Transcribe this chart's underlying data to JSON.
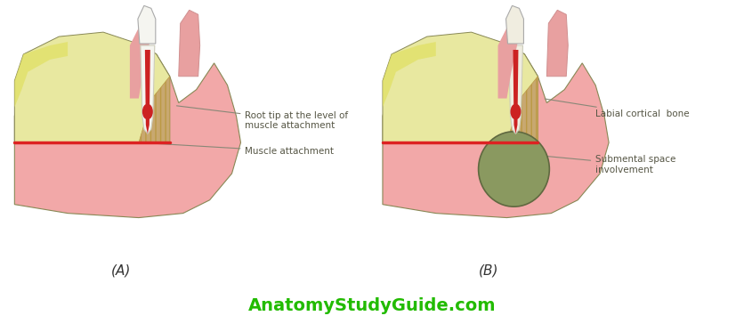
{
  "bg_color": "#ffffff",
  "label_A": "(A)",
  "label_B": "(B)",
  "watermark": "AnatomyStudyGuide.com",
  "watermark_color": "#22bb00",
  "colors": {
    "jaw_pink": "#f2a8a8",
    "jaw_light_pink": "#f8cccc",
    "bone_yellow_light": "#e8e8a0",
    "bone_yellow_green": "#d4d888",
    "bone_yellow_bright": "#e0e060",
    "jaw_outline": "#888855",
    "tooth_white": "#f5f5f0",
    "tooth_cream": "#f0ede0",
    "root_red": "#cc2222",
    "root_pink": "#e07070",
    "gum_pink": "#e8a0a0",
    "gum_dark_pink": "#d88080",
    "hatch_tan": "#c8a870",
    "red_line": "#dd2222",
    "infection_green": "#8a9960",
    "infection_dark": "#606840",
    "text_color": "#555544",
    "line_color": "#888877"
  }
}
